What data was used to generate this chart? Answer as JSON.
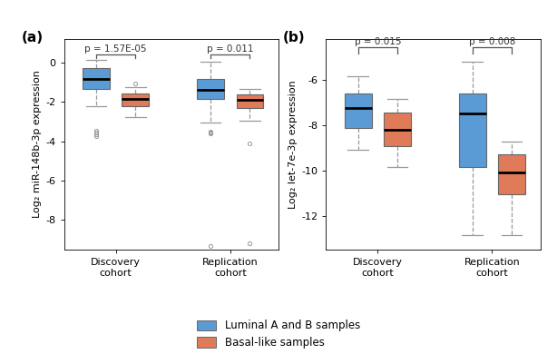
{
  "panel_a": {
    "title_label": "(a)",
    "ylabel": "Log₂ miR-148b-3p expression",
    "pvalue_discovery": "p = 1.57E-05",
    "pvalue_replication": "p = 0.011",
    "ylim": [
      -9.5,
      1.2
    ],
    "yticks": [
      0,
      -2,
      -4,
      -6,
      -8
    ],
    "groups": {
      "discovery_luminal": {
        "q1": -1.35,
        "median": -0.85,
        "q3": -0.3,
        "whisker_low": -2.2,
        "whisker_high": 0.15,
        "outliers": [
          -3.45,
          -3.55,
          -3.65,
          -3.75
        ]
      },
      "discovery_basal": {
        "q1": -2.2,
        "median": -1.85,
        "q3": -1.55,
        "whisker_low": -2.75,
        "whisker_high": -1.25,
        "outliers": [
          -1.05
        ]
      },
      "replication_luminal": {
        "q1": -1.85,
        "median": -1.4,
        "q3": -0.85,
        "whisker_low": -3.05,
        "whisker_high": 0.05,
        "outliers": [
          -3.5,
          -3.55,
          -3.6,
          -9.3
        ]
      },
      "replication_basal": {
        "q1": -2.3,
        "median": -1.9,
        "q3": -1.6,
        "whisker_low": -2.95,
        "whisker_high": -1.35,
        "outliers": [
          -4.1,
          -9.2
        ]
      }
    },
    "bracket_y": 0.42,
    "bracket_tick": 0.18
  },
  "panel_b": {
    "title_label": "(b)",
    "ylabel": "Log₂ let-7e-3p expression",
    "pvalue_discovery": "p = 0.015",
    "pvalue_replication": "p = 0.008",
    "ylim": [
      -13.5,
      -4.2
    ],
    "yticks": [
      -6,
      -8,
      -10,
      -12
    ],
    "groups": {
      "discovery_luminal": {
        "q1": -8.15,
        "median": -7.25,
        "q3": -6.6,
        "whisker_low": -9.1,
        "whisker_high": -5.85,
        "outliers": []
      },
      "discovery_basal": {
        "q1": -8.95,
        "median": -8.2,
        "q3": -7.45,
        "whisker_low": -9.85,
        "whisker_high": -6.85,
        "outliers": []
      },
      "replication_luminal": {
        "q1": -9.85,
        "median": -7.5,
        "q3": -6.6,
        "whisker_low": -12.85,
        "whisker_high": -5.2,
        "outliers": []
      },
      "replication_basal": {
        "q1": -11.05,
        "median": -10.1,
        "q3": -9.3,
        "whisker_low": -12.85,
        "whisker_high": -8.75,
        "outliers": []
      }
    },
    "bracket_y": -4.55,
    "bracket_tick": 0.3
  },
  "colors": {
    "luminal": "#5b9bd5",
    "basal": "#e07b5a",
    "whisker": "#999999",
    "median_line": "#000000",
    "box_edge": "#666666",
    "outlier": "#999999"
  },
  "legend": {
    "luminal_label": "Luminal A and B samples",
    "basal_label": "Basal-like samples"
  },
  "background": "#ffffff",
  "box_width": 0.38,
  "positions": {
    "discovery_luminal": 1.0,
    "discovery_basal": 1.55,
    "replication_luminal": 2.6,
    "replication_basal": 3.15
  },
  "xtick_positions": [
    1.275,
    2.875
  ],
  "xlim": [
    0.55,
    3.55
  ]
}
